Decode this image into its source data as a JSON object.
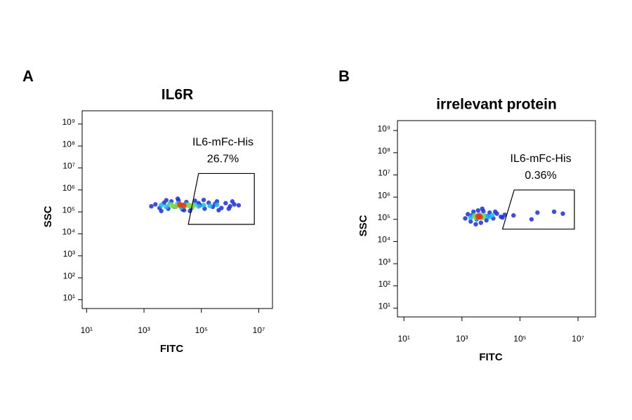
{
  "chart_data": [
    {
      "type": "scatter",
      "panel_label": "A",
      "title": "IL6R",
      "xlabel": "FITC",
      "ylabel": "SSC",
      "xscale": "log",
      "yscale": "log",
      "xlim": [
        7,
        30000000
      ],
      "ylim": [
        4,
        4000000000
      ],
      "xticks": [
        {
          "value": 10,
          "label": "10¹"
        },
        {
          "value": 1000,
          "label": "10³"
        },
        {
          "value": 100000,
          "label": "10⁵"
        },
        {
          "value": 10000000,
          "label": "10⁷"
        }
      ],
      "yticks": [
        {
          "value": 10,
          "label": "10¹"
        },
        {
          "value": 100,
          "label": "10²"
        },
        {
          "value": 1000,
          "label": "10³"
        },
        {
          "value": 10000,
          "label": "10⁴"
        },
        {
          "value": 100000,
          "label": "10⁵"
        },
        {
          "value": 1000000,
          "label": "10⁶"
        },
        {
          "value": 10000000,
          "label": "10⁷"
        },
        {
          "value": 100000000,
          "label": "10⁸"
        },
        {
          "value": 1000000000,
          "label": "10⁹"
        }
      ],
      "series": [
        {
          "color": "#1c2fd6",
          "x": [
            1800,
            2500,
            3500,
            5000,
            7000,
            9000,
            12000,
            16000,
            22000,
            30000,
            45000,
            60000,
            90000,
            130000,
            180000,
            250000,
            350000,
            500000,
            700000,
            1000000,
            1400000,
            2000000,
            4000,
            15000,
            40000,
            120000,
            400000,
            1200000,
            6000,
            25000,
            80000,
            300000,
            900000
          ],
          "y": [
            180000,
            220000,
            150000,
            260000,
            140000,
            300000,
            170000,
            330000,
            130000,
            280000,
            150000,
            320000,
            200000,
            140000,
            260000,
            170000,
            300000,
            150000,
            250000,
            180000,
            220000,
            200000,
            110000,
            400000,
            110000,
            350000,
            120000,
            300000,
            340000,
            120000,
            250000,
            230000,
            140000
          ]
        },
        {
          "color": "#18b8e8",
          "x": [
            4000,
            6000,
            8000,
            11000,
            15000,
            20000,
            28000,
            40000,
            55000,
            80000,
            120000,
            200000,
            350000
          ],
          "y": [
            200000,
            170000,
            230000,
            180000,
            240000,
            160000,
            220000,
            190000,
            210000,
            180000,
            200000,
            190000,
            210000
          ]
        },
        {
          "color": "#8be03a",
          "x": [
            9000,
            13000,
            18000,
            26000,
            36000,
            50000
          ],
          "y": [
            200000,
            180000,
            210000,
            190000,
            200000,
            185000
          ]
        },
        {
          "color": "#e8321e",
          "x": [
            18000,
            24000
          ],
          "y": [
            210000,
            195000
          ]
        }
      ],
      "gate": {
        "name": "IL6-mFc-His",
        "value": 26.7,
        "value_label": "26.7%",
        "x": [
          80000,
          7000000,
          7000000,
          35000
        ],
        "y": [
          5600000,
          5600000,
          27000,
          27000
        ]
      }
    },
    {
      "type": "scatter",
      "panel_label": "B",
      "title": "irrelevant protein",
      "xlabel": "FITC",
      "ylabel": "SSC",
      "xscale": "log",
      "yscale": "log",
      "xlim": [
        6,
        40000000
      ],
      "ylim": [
        4,
        2800000000
      ],
      "xticks": [
        {
          "value": 10,
          "label": "10¹"
        },
        {
          "value": 1000,
          "label": "10³"
        },
        {
          "value": 100000,
          "label": "10⁵"
        },
        {
          "value": 10000000,
          "label": "10⁷"
        }
      ],
      "yticks": [
        {
          "value": 10,
          "label": "10¹"
        },
        {
          "value": 100,
          "label": "10²"
        },
        {
          "value": 1000,
          "label": "10³"
        },
        {
          "value": 10000,
          "label": "10⁴"
        },
        {
          "value": 100000,
          "label": "10⁵"
        },
        {
          "value": 1000000,
          "label": "10⁶"
        },
        {
          "value": 10000000,
          "label": "10⁷"
        },
        {
          "value": 100000000,
          "label": "10⁸"
        },
        {
          "value": 1000000000,
          "label": "10⁹"
        }
      ],
      "series": [
        {
          "color": "#1c2fd6",
          "x": [
            1300,
            1600,
            2000,
            2500,
            3000,
            3600,
            4500,
            5500,
            7000,
            9000,
            12000,
            16000,
            22000,
            30000,
            2200,
            3200,
            5000,
            8000,
            14000,
            25000,
            60000,
            400000,
            1500000,
            3000000,
            250000
          ],
          "y": [
            110000,
            170000,
            80000,
            220000,
            60000,
            250000,
            70000,
            230000,
            90000,
            200000,
            110000,
            180000,
            130000,
            160000,
            150000,
            100000,
            300000,
            140000,
            220000,
            120000,
            150000,
            200000,
            220000,
            180000,
            100000
          ]
        },
        {
          "color": "#18b8e8",
          "x": [
            2000,
            2600,
            3200,
            4000,
            5000,
            6500,
            8500,
            11000
          ],
          "y": [
            120000,
            150000,
            110000,
            160000,
            120000,
            140000,
            130000,
            150000
          ]
        },
        {
          "color": "#8be03a",
          "x": [
            2800,
            3500,
            4300,
            5200
          ],
          "y": [
            130000,
            140000,
            125000,
            135000
          ]
        },
        {
          "color": "#e8321e",
          "x": [
            3600,
            4200
          ],
          "y": [
            135000,
            130000
          ]
        }
      ],
      "gate": {
        "name": "IL6-mFc-His",
        "value": 0.36,
        "value_label": "0.36%",
        "x": [
          63000,
          7500000,
          7500000,
          25000
        ],
        "y": [
          2100000,
          2100000,
          36000,
          36000
        ]
      }
    }
  ]
}
